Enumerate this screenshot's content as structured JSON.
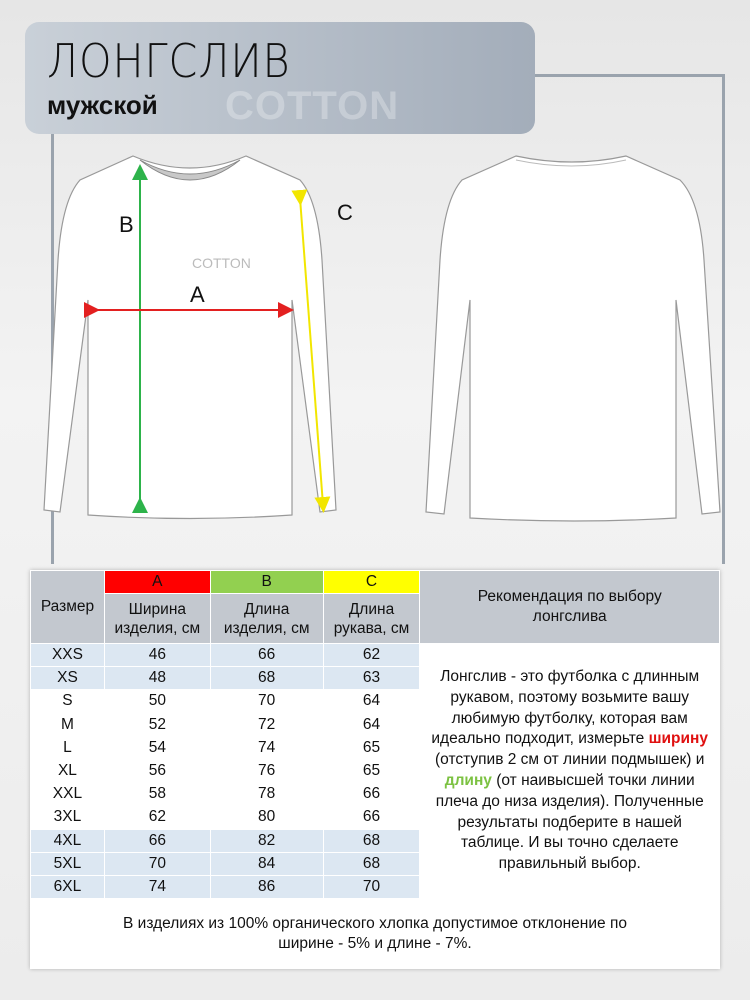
{
  "header": {
    "title": "ЛОНГСЛИВ",
    "subtitle": "мужской",
    "watermark": "COTTON"
  },
  "diagram": {
    "label_a": "A",
    "label_b": "B",
    "label_c": "C",
    "chest_logo": "COTTON"
  },
  "colors": {
    "a": "#ff0000",
    "b": "#92d050",
    "c": "#ffff00"
  },
  "table": {
    "size_header": "Размер",
    "columns": [
      {
        "letter": "A",
        "label": "Ширина изделия, см"
      },
      {
        "letter": "B",
        "label": "Длина изделия, см"
      },
      {
        "letter": "C",
        "label": "Длина рукава, см"
      }
    ],
    "rows": [
      {
        "size": "XXS",
        "a": "46",
        "b": "66",
        "c": "62"
      },
      {
        "size": "XS",
        "a": "48",
        "b": "68",
        "c": "63"
      },
      {
        "size": "S",
        "a": "50",
        "b": "70",
        "c": "64"
      },
      {
        "size": "M",
        "a": "52",
        "b": "72",
        "c": "64"
      },
      {
        "size": "L",
        "a": "54",
        "b": "74",
        "c": "65"
      },
      {
        "size": "XL",
        "a": "56",
        "b": "76",
        "c": "65"
      },
      {
        "size": "XXL",
        "a": "58",
        "b": "78",
        "c": "66"
      },
      {
        "size": "3XL",
        "a": "62",
        "b": "80",
        "c": "66"
      },
      {
        "size": "4XL",
        "a": "66",
        "b": "82",
        "c": "68"
      },
      {
        "size": "5XL",
        "a": "70",
        "b": "84",
        "c": "68"
      },
      {
        "size": "6XL",
        "a": "74",
        "b": "86",
        "c": "70"
      }
    ],
    "recommendation_title": "Рекомендация по выбору лонгслива",
    "recommendation": {
      "p1": "Лонгслив - это футболка с длинным рукавом, поэтому возьмите вашу любимую футболку, которая вам идеально подходит, измерьте ",
      "w1": "ширину",
      "p2": " (отступив 2 см от линии подмышек) и ",
      "w2": "длину",
      "p3": " (от наивысшей точки линии плеча  до низа изделия). Полученные результаты подберите в нашей таблице. И вы точно сделаете правильный выбор."
    },
    "note": "В изделиях из 100% органического хлопка допустимое отклонение по ширине - 5% и длине - 7%."
  }
}
